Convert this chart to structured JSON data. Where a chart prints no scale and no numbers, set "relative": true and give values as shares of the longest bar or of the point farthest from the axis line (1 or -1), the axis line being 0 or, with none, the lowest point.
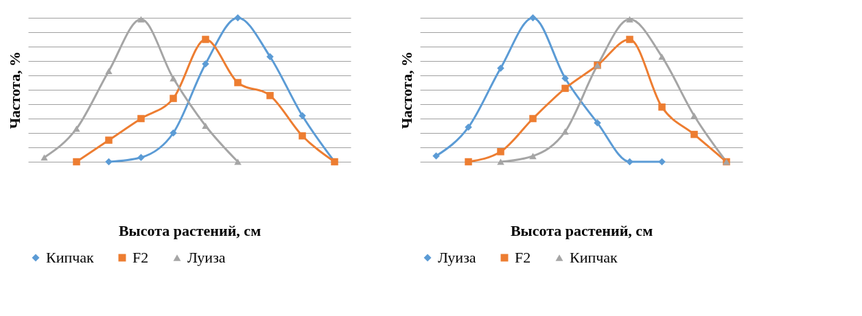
{
  "chart_data": [
    {
      "type": "line",
      "relative": true,
      "ylabel": "Частота, %",
      "xlabel": "Высота растений, см",
      "categories": [
        null,
        null,
        null,
        null,
        null,
        null,
        null,
        null,
        null,
        null
      ],
      "grid": "y",
      "legend": "bottom",
      "tick_labels": false,
      "line_style": "solid",
      "series": [
        {
          "name": "Кипчак",
          "color": "#5b9bd5",
          "marker": "diamond",
          "values": [
            null,
            null,
            0,
            0.03,
            0.2,
            0.68,
            1.0,
            0.73,
            0.32,
            0
          ]
        },
        {
          "name": "F2",
          "color": "#ed7d31",
          "marker": "square",
          "values": [
            null,
            0,
            0.15,
            0.3,
            0.44,
            0.85,
            0.55,
            0.46,
            0.18,
            0
          ]
        },
        {
          "name": "Луиза",
          "color": "#a5a5a5",
          "marker": "triangle",
          "values": [
            0.03,
            0.23,
            0.63,
            0.99,
            0.58,
            0.25,
            0,
            null,
            null,
            null
          ]
        }
      ]
    },
    {
      "type": "line",
      "relative": true,
      "ylabel": "Частота, %",
      "xlabel": "Высота растений, см",
      "categories": [
        null,
        null,
        null,
        null,
        null,
        null,
        null,
        null,
        null,
        null
      ],
      "grid": "y",
      "legend": "bottom",
      "tick_labels": false,
      "line_style": "solid",
      "series": [
        {
          "name": "Луиза",
          "color": "#5b9bd5",
          "marker": "diamond",
          "values": [
            0.04,
            0.24,
            0.65,
            1.0,
            0.58,
            0.27,
            0,
            0,
            null,
            null
          ]
        },
        {
          "name": "F2",
          "color": "#ed7d31",
          "marker": "square",
          "values": [
            null,
            0,
            0.07,
            0.3,
            0.51,
            0.67,
            0.85,
            0.38,
            0.19,
            0
          ]
        },
        {
          "name": "Кипчак",
          "color": "#a5a5a5",
          "marker": "triangle",
          "values": [
            null,
            null,
            0,
            0.04,
            0.21,
            0.67,
            0.99,
            0.73,
            0.32,
            0
          ]
        }
      ]
    }
  ]
}
